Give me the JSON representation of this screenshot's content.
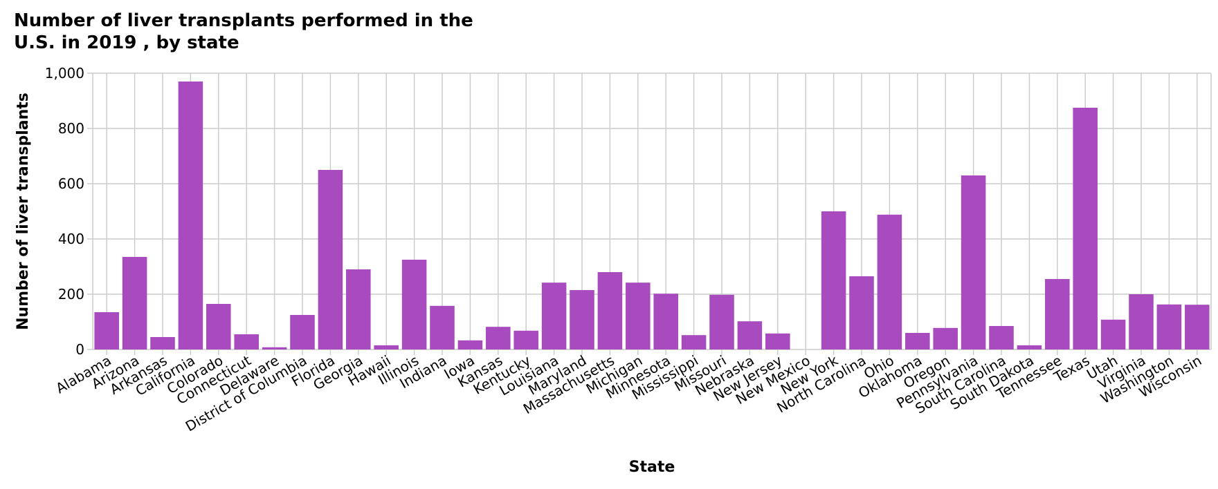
{
  "chart_data": {
    "type": "bar",
    "title": "Number of liver transplants performed in the U.S. in 2019 , by state",
    "xlabel": "State",
    "ylabel": "Number of liver transplants",
    "ylim": [
      0,
      1000
    ],
    "yticks": [
      0,
      200,
      400,
      600,
      800,
      1000
    ],
    "ytick_labels": [
      "0",
      "200",
      "400",
      "600",
      "800",
      "1,000"
    ],
    "grid": true,
    "bar_color": "#a84bbf",
    "categories": [
      "Alabama",
      "Arizona",
      "Arkansas",
      "California",
      "Colorado",
      "Connecticut",
      "Delaware",
      "District of Columbia",
      "Florida",
      "Georgia",
      "Hawaii",
      "Illinois",
      "Indiana",
      "Iowa",
      "Kansas",
      "Kentucky",
      "Louisiana",
      "Maryland",
      "Massachusetts",
      "Michigan",
      "Minnesota",
      "Mississippi",
      "Missouri",
      "Nebraska",
      "New Jersey",
      "New Mexico",
      "New York",
      "North Carolina",
      "Ohio",
      "Oklahoma",
      "Oregon",
      "Pennsylvania",
      "South Carolina",
      "South Dakota",
      "Tennessee",
      "Texas",
      "Utah",
      "Virginia",
      "Washington",
      "Wisconsin"
    ],
    "values": [
      135,
      335,
      45,
      970,
      165,
      55,
      8,
      125,
      650,
      290,
      15,
      325,
      158,
      33,
      82,
      68,
      242,
      215,
      280,
      242,
      202,
      52,
      198,
      102,
      58,
      0,
      500,
      265,
      488,
      60,
      78,
      630,
      85,
      15,
      255,
      875,
      108,
      200,
      163,
      162
    ]
  }
}
